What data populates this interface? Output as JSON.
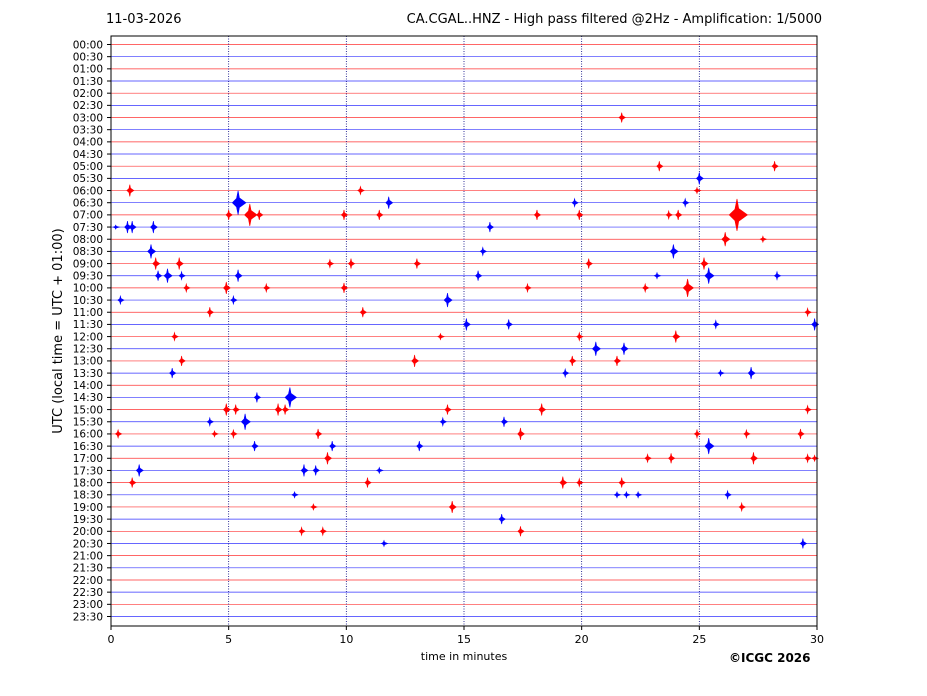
{
  "header": {
    "date": "11-03-2026",
    "title": "CA.CGAL..HNZ - High pass filtered @2Hz - Amplification: 1/5000"
  },
  "footer": {
    "credit": "©ICGC 2026"
  },
  "colors": {
    "odd_trace": "#ff0000",
    "even_trace": "#0000ff",
    "grid": "#000080"
  },
  "chart_data": {
    "type": "line",
    "xlabel": "time in minutes",
    "ylabel": "UTC (local time = UTC + 01:00)",
    "xlim": [
      0,
      30
    ],
    "xticks": [
      0,
      5,
      10,
      15,
      20,
      25,
      30
    ],
    "vertical_gridlines_at": [
      5,
      10,
      15,
      20,
      25
    ],
    "rows": [
      "00:00",
      "00:30",
      "01:00",
      "01:30",
      "02:00",
      "02:30",
      "03:00",
      "03:30",
      "04:00",
      "04:30",
      "05:00",
      "05:30",
      "06:00",
      "06:30",
      "07:00",
      "07:30",
      "08:00",
      "08:30",
      "09:00",
      "09:30",
      "10:00",
      "10:30",
      "11:00",
      "11:30",
      "12:00",
      "12:30",
      "13:00",
      "13:30",
      "14:00",
      "14:30",
      "15:00",
      "15:30",
      "16:00",
      "16:30",
      "17:00",
      "17:30",
      "18:00",
      "18:30",
      "19:00",
      "19:30",
      "20:00",
      "20:30",
      "21:00",
      "21:30",
      "22:00",
      "22:30",
      "23:00",
      "23:30"
    ],
    "events": [
      {
        "row": "03:00",
        "t": 21.7,
        "a": 5
      },
      {
        "row": "05:00",
        "t": 23.3,
        "a": 5
      },
      {
        "row": "05:00",
        "t": 28.2,
        "a": 5
      },
      {
        "row": "05:30",
        "t": 25.0,
        "a": 6
      },
      {
        "row": "06:00",
        "t": 0.8,
        "a": 6
      },
      {
        "row": "06:00",
        "t": 10.6,
        "a": 4
      },
      {
        "row": "06:00",
        "t": 24.9,
        "a": 3
      },
      {
        "row": "06:30",
        "t": 5.4,
        "a": 12
      },
      {
        "row": "06:30",
        "t": 11.8,
        "a": 6
      },
      {
        "row": "06:30",
        "t": 19.7,
        "a": 4
      },
      {
        "row": "06:30",
        "t": 24.4,
        "a": 4
      },
      {
        "row": "07:00",
        "t": 5.0,
        "a": 5
      },
      {
        "row": "07:00",
        "t": 5.9,
        "a": 11
      },
      {
        "row": "07:00",
        "t": 6.3,
        "a": 5
      },
      {
        "row": "07:00",
        "t": 9.9,
        "a": 5
      },
      {
        "row": "07:00",
        "t": 11.4,
        "a": 5
      },
      {
        "row": "07:00",
        "t": 18.1,
        "a": 5
      },
      {
        "row": "07:00",
        "t": 19.9,
        "a": 5
      },
      {
        "row": "07:00",
        "t": 23.7,
        "a": 4
      },
      {
        "row": "07:00",
        "t": 24.1,
        "a": 5
      },
      {
        "row": "07:00",
        "t": 26.6,
        "a": 16
      },
      {
        "row": "07:30",
        "t": 0.2,
        "a": 2
      },
      {
        "row": "07:30",
        "t": 0.7,
        "a": 6
      },
      {
        "row": "07:30",
        "t": 0.9,
        "a": 6
      },
      {
        "row": "07:30",
        "t": 1.8,
        "a": 6
      },
      {
        "row": "07:30",
        "t": 16.1,
        "a": 5
      },
      {
        "row": "08:00",
        "t": 26.1,
        "a": 7
      },
      {
        "row": "08:00",
        "t": 27.7,
        "a": 3
      },
      {
        "row": "08:30",
        "t": 1.7,
        "a": 7
      },
      {
        "row": "08:30",
        "t": 15.8,
        "a": 4
      },
      {
        "row": "08:30",
        "t": 23.9,
        "a": 7
      },
      {
        "row": "09:00",
        "t": 1.9,
        "a": 6
      },
      {
        "row": "09:00",
        "t": 2.9,
        "a": 6
      },
      {
        "row": "09:00",
        "t": 9.3,
        "a": 4
      },
      {
        "row": "09:00",
        "t": 10.2,
        "a": 5
      },
      {
        "row": "09:00",
        "t": 13.0,
        "a": 5
      },
      {
        "row": "09:00",
        "t": 20.3,
        "a": 5
      },
      {
        "row": "09:00",
        "t": 25.2,
        "a": 6
      },
      {
        "row": "09:30",
        "t": 2.0,
        "a": 5
      },
      {
        "row": "09:30",
        "t": 2.4,
        "a": 7
      },
      {
        "row": "09:30",
        "t": 3.0,
        "a": 4
      },
      {
        "row": "09:30",
        "t": 5.4,
        "a": 6
      },
      {
        "row": "09:30",
        "t": 15.6,
        "a": 5
      },
      {
        "row": "09:30",
        "t": 23.2,
        "a": 3
      },
      {
        "row": "09:30",
        "t": 25.4,
        "a": 8
      },
      {
        "row": "09:30",
        "t": 28.3,
        "a": 4
      },
      {
        "row": "10:00",
        "t": 3.2,
        "a": 4
      },
      {
        "row": "10:00",
        "t": 4.9,
        "a": 6
      },
      {
        "row": "10:00",
        "t": 6.6,
        "a": 4
      },
      {
        "row": "10:00",
        "t": 9.9,
        "a": 5
      },
      {
        "row": "10:00",
        "t": 17.7,
        "a": 4
      },
      {
        "row": "10:00",
        "t": 22.7,
        "a": 4
      },
      {
        "row": "10:00",
        "t": 24.5,
        "a": 9
      },
      {
        "row": "10:30",
        "t": 0.4,
        "a": 4
      },
      {
        "row": "10:30",
        "t": 5.2,
        "a": 4
      },
      {
        "row": "10:30",
        "t": 14.3,
        "a": 7
      },
      {
        "row": "11:00",
        "t": 4.2,
        "a": 5
      },
      {
        "row": "11:00",
        "t": 10.7,
        "a": 5
      },
      {
        "row": "11:00",
        "t": 29.6,
        "a": 4
      },
      {
        "row": "11:30",
        "t": 15.1,
        "a": 6
      },
      {
        "row": "11:30",
        "t": 16.9,
        "a": 5
      },
      {
        "row": "11:30",
        "t": 25.7,
        "a": 4
      },
      {
        "row": "11:30",
        "t": 29.9,
        "a": 6
      },
      {
        "row": "12:00",
        "t": 2.7,
        "a": 4
      },
      {
        "row": "12:00",
        "t": 14.0,
        "a": 3
      },
      {
        "row": "12:00",
        "t": 19.9,
        "a": 4
      },
      {
        "row": "12:00",
        "t": 24.0,
        "a": 6
      },
      {
        "row": "12:30",
        "t": 20.6,
        "a": 7
      },
      {
        "row": "12:30",
        "t": 21.8,
        "a": 6
      },
      {
        "row": "13:00",
        "t": 3.0,
        "a": 5
      },
      {
        "row": "13:00",
        "t": 12.9,
        "a": 6
      },
      {
        "row": "13:00",
        "t": 19.6,
        "a": 5
      },
      {
        "row": "13:00",
        "t": 21.5,
        "a": 5
      },
      {
        "row": "13:30",
        "t": 2.6,
        "a": 5
      },
      {
        "row": "13:30",
        "t": 19.3,
        "a": 4
      },
      {
        "row": "13:30",
        "t": 25.9,
        "a": 3
      },
      {
        "row": "13:30",
        "t": 27.2,
        "a": 6
      },
      {
        "row": "14:30",
        "t": 6.2,
        "a": 5
      },
      {
        "row": "14:30",
        "t": 7.6,
        "a": 10
      },
      {
        "row": "15:00",
        "t": 4.9,
        "a": 6
      },
      {
        "row": "15:00",
        "t": 5.3,
        "a": 5
      },
      {
        "row": "15:00",
        "t": 7.1,
        "a": 6
      },
      {
        "row": "15:00",
        "t": 7.4,
        "a": 5
      },
      {
        "row": "15:00",
        "t": 14.3,
        "a": 5
      },
      {
        "row": "15:00",
        "t": 18.3,
        "a": 6
      },
      {
        "row": "15:00",
        "t": 29.6,
        "a": 4
      },
      {
        "row": "15:30",
        "t": 4.2,
        "a": 4
      },
      {
        "row": "15:30",
        "t": 5.7,
        "a": 8
      },
      {
        "row": "15:30",
        "t": 14.1,
        "a": 4
      },
      {
        "row": "15:30",
        "t": 16.7,
        "a": 5
      },
      {
        "row": "16:00",
        "t": 0.3,
        "a": 4
      },
      {
        "row": "16:00",
        "t": 4.4,
        "a": 3
      },
      {
        "row": "16:00",
        "t": 5.2,
        "a": 4
      },
      {
        "row": "16:00",
        "t": 8.8,
        "a": 5
      },
      {
        "row": "16:00",
        "t": 17.4,
        "a": 6
      },
      {
        "row": "16:00",
        "t": 24.9,
        "a": 4
      },
      {
        "row": "16:00",
        "t": 27.0,
        "a": 4
      },
      {
        "row": "16:00",
        "t": 29.3,
        "a": 5
      },
      {
        "row": "16:30",
        "t": 6.1,
        "a": 5
      },
      {
        "row": "16:30",
        "t": 9.4,
        "a": 5
      },
      {
        "row": "16:30",
        "t": 13.1,
        "a": 5
      },
      {
        "row": "16:30",
        "t": 25.4,
        "a": 8
      },
      {
        "row": "17:00",
        "t": 9.2,
        "a": 6
      },
      {
        "row": "17:00",
        "t": 22.8,
        "a": 4
      },
      {
        "row": "17:00",
        "t": 23.8,
        "a": 5
      },
      {
        "row": "17:00",
        "t": 27.3,
        "a": 6
      },
      {
        "row": "17:00",
        "t": 29.6,
        "a": 4
      },
      {
        "row": "17:00",
        "t": 29.9,
        "a": 3
      },
      {
        "row": "17:30",
        "t": 1.2,
        "a": 6
      },
      {
        "row": "17:30",
        "t": 8.2,
        "a": 6
      },
      {
        "row": "17:30",
        "t": 8.7,
        "a": 5
      },
      {
        "row": "17:30",
        "t": 11.4,
        "a": 3
      },
      {
        "row": "18:00",
        "t": 0.9,
        "a": 5
      },
      {
        "row": "18:00",
        "t": 10.9,
        "a": 5
      },
      {
        "row": "18:00",
        "t": 19.2,
        "a": 6
      },
      {
        "row": "18:00",
        "t": 19.9,
        "a": 4
      },
      {
        "row": "18:00",
        "t": 21.7,
        "a": 5
      },
      {
        "row": "18:30",
        "t": 7.8,
        "a": 3
      },
      {
        "row": "18:30",
        "t": 21.5,
        "a": 3
      },
      {
        "row": "18:30",
        "t": 21.9,
        "a": 3
      },
      {
        "row": "18:30",
        "t": 22.4,
        "a": 3
      },
      {
        "row": "18:30",
        "t": 26.2,
        "a": 4
      },
      {
        "row": "19:00",
        "t": 8.6,
        "a": 3
      },
      {
        "row": "19:00",
        "t": 14.5,
        "a": 6
      },
      {
        "row": "19:00",
        "t": 26.8,
        "a": 4
      },
      {
        "row": "19:30",
        "t": 16.6,
        "a": 5
      },
      {
        "row": "20:00",
        "t": 8.1,
        "a": 4
      },
      {
        "row": "20:00",
        "t": 9.0,
        "a": 4
      },
      {
        "row": "20:00",
        "t": 17.4,
        "a": 5
      },
      {
        "row": "20:30",
        "t": 11.6,
        "a": 3
      },
      {
        "row": "20:30",
        "t": 29.4,
        "a": 5
      }
    ]
  }
}
